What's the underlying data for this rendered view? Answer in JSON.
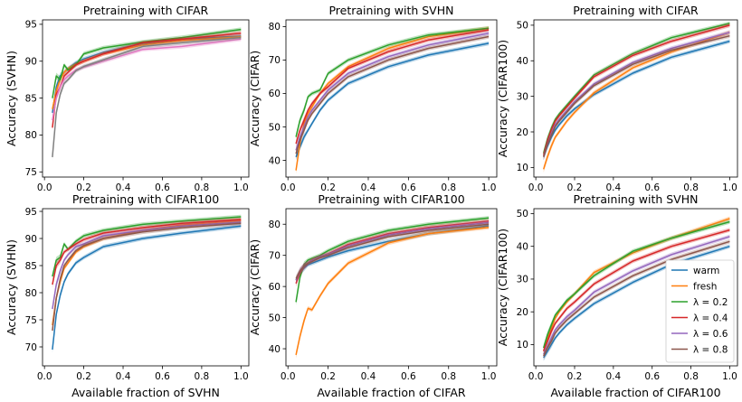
{
  "colors": {
    "warm": "#1f77b4",
    "fresh": "#ff7f0e",
    "l02": "#2ca02c",
    "l04": "#d62728",
    "l06": "#9467bd",
    "l08": "#8c564b",
    "pink": "#e377c2",
    "gray": "#7f7f7f"
  },
  "legend": {
    "placement": "lower-right",
    "panel": 5,
    "entries": [
      {
        "label": "warm",
        "color_key": "warm"
      },
      {
        "label": "fresh",
        "color_key": "fresh"
      },
      {
        "label": "λ = 0.2",
        "color_key": "l02"
      },
      {
        "label": "λ = 0.4",
        "color_key": "l04"
      },
      {
        "label": "λ = 0.6",
        "color_key": "l06"
      },
      {
        "label": "λ = 0.8",
        "color_key": "l08"
      }
    ]
  },
  "chart_data": [
    {
      "type": "line",
      "title": "Pretraining with CIFAR",
      "xlabel": "",
      "ylabel": "Accuracy (SVHN)",
      "xlim": [
        -0.01,
        1.04
      ],
      "ylim": [
        74.3,
        95.6
      ],
      "xticks": [
        "0.0",
        "0.2",
        "0.4",
        "0.6",
        "0.8",
        "1.0"
      ],
      "yticks": [
        "75",
        "80",
        "85",
        "90",
        "95"
      ],
      "x": [
        0.04,
        0.06,
        0.08,
        0.1,
        0.12,
        0.16,
        0.2,
        0.3,
        0.5,
        0.7,
        1.0
      ],
      "series": [
        {
          "color_key": "warm",
          "values": [
            83,
            86.5,
            88,
            88.5,
            89,
            89.8,
            90.3,
            91.2,
            92.4,
            93,
            93.4
          ]
        },
        {
          "color_key": "fresh",
          "values": [
            83.5,
            86,
            87.5,
            88.5,
            89,
            89.6,
            90,
            91,
            92.2,
            92.8,
            93.3
          ]
        },
        {
          "color_key": "l02",
          "values": [
            85,
            88,
            87.5,
            89.5,
            88.8,
            89.5,
            91,
            91.8,
            92.6,
            93.2,
            94.3
          ]
        },
        {
          "color_key": "l04",
          "values": [
            81,
            85.5,
            86.5,
            88,
            88.5,
            89.5,
            90,
            91,
            92.5,
            93,
            93.8
          ]
        },
        {
          "color_key": "pink",
          "values": [
            82,
            85,
            86.5,
            87.5,
            88,
            88.8,
            89.2,
            90,
            91.6,
            92,
            93
          ]
        },
        {
          "color_key": "gray",
          "values": [
            77,
            83,
            85.5,
            87,
            87.5,
            88.7,
            89.3,
            90.2,
            92,
            92.5,
            93.2
          ]
        }
      ]
    },
    {
      "type": "line",
      "title": "Pretraining with SVHN",
      "xlabel": "",
      "ylabel": "Accuracy (CIFAR)",
      "xlim": [
        -0.01,
        1.04
      ],
      "ylim": [
        35,
        82
      ],
      "xticks": [
        "0.0",
        "0.2",
        "0.4",
        "0.6",
        "0.8",
        "1.0"
      ],
      "yticks": [
        "40",
        "50",
        "60",
        "70",
        "80"
      ],
      "x": [
        0.04,
        0.06,
        0.08,
        0.1,
        0.12,
        0.16,
        0.2,
        0.3,
        0.5,
        0.7,
        1.0
      ],
      "series": [
        {
          "color_key": "warm",
          "values": [
            41,
            44,
            47,
            49,
            51,
            55,
            58,
            63,
            68,
            71.5,
            75
          ]
        },
        {
          "color_key": "fresh",
          "values": [
            37,
            45,
            51,
            54,
            56,
            60,
            63,
            68,
            73.5,
            77,
            79.5
          ]
        },
        {
          "color_key": "l02",
          "values": [
            47,
            52,
            55,
            59,
            60,
            61,
            66,
            70,
            74.5,
            77.5,
            79.5
          ]
        },
        {
          "color_key": "l04",
          "values": [
            45,
            49,
            52,
            55,
            57,
            60,
            62,
            67.5,
            72.5,
            76,
            79
          ]
        },
        {
          "color_key": "l06",
          "values": [
            43,
            47,
            50,
            53,
            55,
            58,
            61,
            66,
            71,
            74.5,
            78
          ]
        },
        {
          "color_key": "l08",
          "values": [
            42,
            46,
            49,
            52,
            54,
            57,
            60,
            65,
            70,
            73.5,
            77
          ]
        }
      ]
    },
    {
      "type": "line",
      "title": "Pretraining with CIFAR",
      "xlabel": "",
      "ylabel": "Accuracy (CIFAR100)",
      "xlim": [
        -0.01,
        1.04
      ],
      "ylim": [
        7.3,
        51.5
      ],
      "xticks": [
        "0.0",
        "0.2",
        "0.4",
        "0.6",
        "0.8",
        "1.0"
      ],
      "yticks": [
        "10",
        "20",
        "30",
        "40",
        "50"
      ],
      "x": [
        0.04,
        0.06,
        0.08,
        0.1,
        0.12,
        0.16,
        0.2,
        0.3,
        0.5,
        0.7,
        1.0
      ],
      "series": [
        {
          "color_key": "warm",
          "values": [
            13,
            16,
            18.5,
            20.5,
            22,
            24.5,
            26.5,
            30.5,
            36.5,
            41,
            45.5
          ]
        },
        {
          "color_key": "fresh",
          "values": [
            9.5,
            13,
            16,
            18.5,
            20,
            23,
            25.5,
            31,
            38,
            42.5,
            48
          ]
        },
        {
          "color_key": "l02",
          "values": [
            14,
            18,
            21,
            23.5,
            25,
            27.5,
            30,
            36,
            42,
            46.5,
            50.5
          ]
        },
        {
          "color_key": "l04",
          "values": [
            13.5,
            17.5,
            20.5,
            23,
            24.5,
            27,
            29.5,
            35.5,
            41.5,
            45.5,
            50
          ]
        },
        {
          "color_key": "l06",
          "values": [
            13,
            16.5,
            19.5,
            22,
            23.5,
            26,
            28.5,
            33.5,
            39.5,
            43.5,
            48
          ]
        },
        {
          "color_key": "l08",
          "values": [
            13,
            16.5,
            19,
            21.5,
            23,
            25.5,
            28,
            33,
            39,
            43,
            47
          ]
        }
      ]
    },
    {
      "type": "line",
      "title": "Pretraining with CIFAR100",
      "xlabel": "Available fraction of SVHN",
      "ylabel": "Accuracy (SVHN)",
      "xlim": [
        -0.01,
        1.04
      ],
      "ylim": [
        66.5,
        95.5
      ],
      "xticks": [
        "0.0",
        "0.2",
        "0.4",
        "0.6",
        "0.8",
        "1.0"
      ],
      "yticks": [
        "70",
        "75",
        "80",
        "85",
        "90",
        "95"
      ],
      "x": [
        0.04,
        0.06,
        0.08,
        0.1,
        0.12,
        0.16,
        0.2,
        0.3,
        0.5,
        0.7,
        1.0
      ],
      "series": [
        {
          "color_key": "warm",
          "values": [
            69.5,
            76,
            79.5,
            82,
            83.5,
            85.5,
            86.5,
            88.5,
            90,
            91,
            92.3
          ]
        },
        {
          "color_key": "fresh",
          "values": [
            74,
            79,
            82,
            84.5,
            85.5,
            87.5,
            88.5,
            90,
            91.5,
            92.5,
            93.3
          ]
        },
        {
          "color_key": "l02",
          "values": [
            83,
            86,
            86.5,
            89,
            88,
            89.5,
            90.5,
            91.5,
            92.6,
            93.2,
            94
          ]
        },
        {
          "color_key": "l04",
          "values": [
            81.5,
            85,
            86,
            87.5,
            88,
            89,
            89.8,
            91,
            92,
            92.8,
            93.5
          ]
        },
        {
          "color_key": "l06",
          "values": [
            77,
            81.5,
            84,
            86,
            87,
            88.5,
            89,
            90.5,
            91.5,
            92.3,
            93
          ]
        },
        {
          "color_key": "l08",
          "values": [
            73,
            79,
            82.5,
            85,
            86,
            87.8,
            88.7,
            90,
            91.2,
            92,
            92.8
          ]
        }
      ]
    },
    {
      "type": "line",
      "title": "Pretraining with CIFAR100",
      "xlabel": "Available fraction of CIFAR",
      "ylabel": "Accuracy (CIFAR)",
      "xlim": [
        -0.01,
        1.04
      ],
      "ylim": [
        34.5,
        85
      ],
      "xticks": [
        "0.0",
        "0.2",
        "0.4",
        "0.6",
        "0.8",
        "1.0"
      ],
      "yticks": [
        "40",
        "50",
        "60",
        "70",
        "80"
      ],
      "x": [
        0.04,
        0.06,
        0.08,
        0.1,
        0.12,
        0.16,
        0.2,
        0.3,
        0.5,
        0.7,
        1.0
      ],
      "series": [
        {
          "color_key": "warm",
          "values": [
            62,
            64.5,
            66,
            67,
            67.5,
            68.5,
            69.5,
            71.5,
            74.5,
            77,
            79.5
          ]
        },
        {
          "color_key": "fresh",
          "values": [
            38,
            44,
            49,
            53,
            52.5,
            57,
            61,
            67.5,
            74,
            77,
            79
          ]
        },
        {
          "color_key": "l02",
          "values": [
            55,
            63,
            67,
            68.5,
            69,
            70,
            71.5,
            74.5,
            78,
            80,
            82
          ]
        },
        {
          "color_key": "l04",
          "values": [
            61,
            64.5,
            66.5,
            67.5,
            68.5,
            69.5,
            70.5,
            73.5,
            77,
            79,
            81
          ]
        },
        {
          "color_key": "l06",
          "values": [
            62,
            65,
            66.5,
            67.5,
            68.3,
            69.5,
            70.3,
            73,
            76.5,
            78.5,
            80.5
          ]
        },
        {
          "color_key": "l08",
          "values": [
            62.5,
            65,
            66.5,
            67.5,
            68,
            69.3,
            70,
            72.5,
            76,
            78,
            80
          ]
        }
      ]
    },
    {
      "type": "line",
      "title": "Pretraining with SVHN",
      "xlabel": "Available fraction of CIFAR100",
      "ylabel": "Accuracy (CIFAR100)",
      "xlim": [
        -0.01,
        1.04
      ],
      "ylim": [
        3.5,
        51.5
      ],
      "xticks": [
        "0.0",
        "0.2",
        "0.4",
        "0.6",
        "0.8",
        "1.0"
      ],
      "yticks": [
        "10",
        "20",
        "30",
        "40",
        "50"
      ],
      "x": [
        0.04,
        0.06,
        0.08,
        0.1,
        0.12,
        0.16,
        0.2,
        0.3,
        0.5,
        0.7,
        1.0
      ],
      "series": [
        {
          "color_key": "warm",
          "values": [
            6,
            8,
            10,
            12,
            13.5,
            16,
            18,
            22.5,
            29,
            34.5,
            40
          ]
        },
        {
          "color_key": "fresh",
          "values": [
            8,
            12,
            15,
            18,
            20,
            23,
            25.5,
            32,
            38,
            42.5,
            48.5
          ]
        },
        {
          "color_key": "l02",
          "values": [
            9,
            13,
            16,
            19,
            20.5,
            23.5,
            25.5,
            31,
            38.5,
            42.5,
            47.5
          ]
        },
        {
          "color_key": "l04",
          "values": [
            8,
            11,
            14,
            16.5,
            18,
            21,
            23,
            28.5,
            35.5,
            40,
            45
          ]
        },
        {
          "color_key": "l06",
          "values": [
            7,
            9.5,
            12,
            14.5,
            16,
            18.5,
            20.5,
            26,
            32.5,
            37.5,
            43
          ]
        },
        {
          "color_key": "l08",
          "values": [
            6.5,
            9,
            11,
            13.5,
            15,
            17.5,
            19.5,
            24.5,
            31,
            36,
            41.5
          ]
        }
      ]
    }
  ]
}
